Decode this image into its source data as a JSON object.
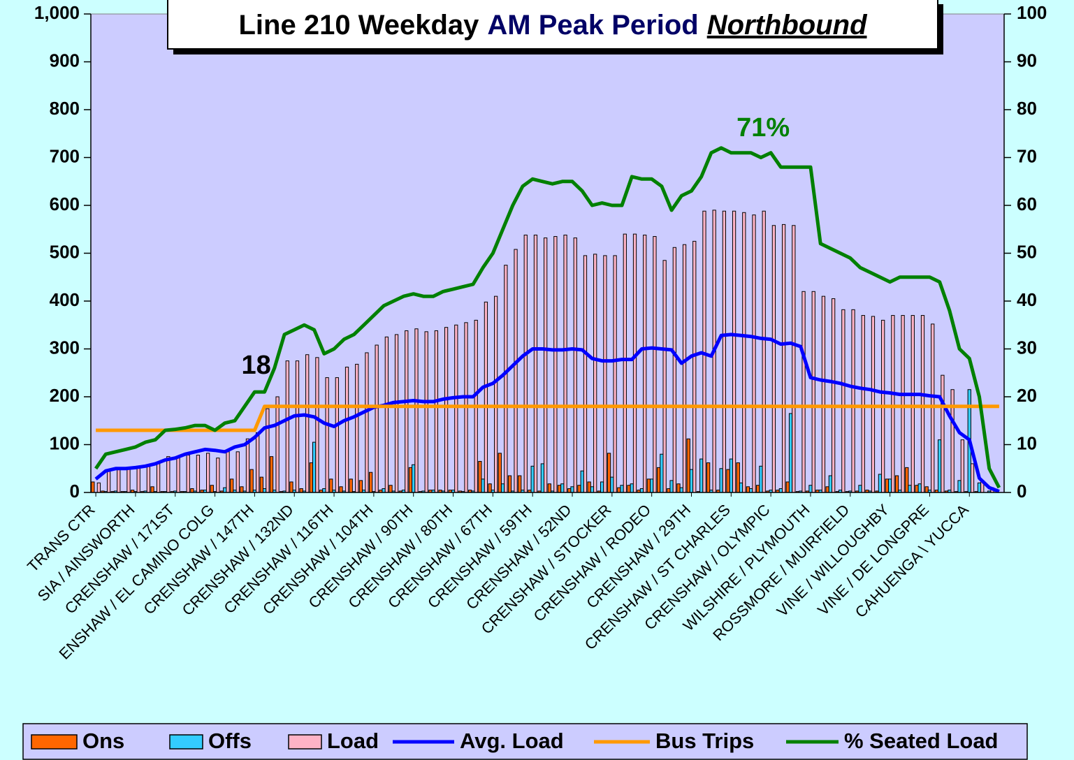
{
  "chart_data": {
    "type": "bar",
    "title": "Line 210 Weekday",
    "title_period": "AM Peak Period",
    "title_direction": "Northbound",
    "categories": [
      "TRANS CTR",
      null,
      null,
      null,
      "SIA / AINSWORTH",
      null,
      null,
      null,
      "CRENSHAW / 171ST",
      null,
      null,
      null,
      "ENSHAW / EL CAMINO COLG",
      null,
      null,
      null,
      "CRENSHAW / 147TH",
      null,
      null,
      null,
      "CRENSHAW / 132ND",
      null,
      null,
      null,
      "CRENSHAW / 116TH",
      null,
      null,
      null,
      "CRENSHAW / 104TH",
      null,
      null,
      null,
      "CRENSHAW / 90TH",
      null,
      null,
      null,
      "CRENSHAW / 80TH",
      null,
      null,
      null,
      "CRENSHAW / 67TH",
      null,
      null,
      null,
      "CRENSHAW / 59TH",
      null,
      null,
      null,
      "CRENSHAW / 52ND",
      null,
      null,
      null,
      "CRENSHAW / STOCKER",
      null,
      null,
      null,
      "CRENSHAW / RODEO",
      null,
      null,
      null,
      "CRENSHAW / 29TH",
      null,
      null,
      null,
      "CRENSHAW / ST CHARLES",
      null,
      null,
      null,
      "CRENSHAW / OLYMPIC",
      null,
      null,
      null,
      "WILSHIRE / PLYMOUTH",
      null,
      null,
      null,
      "ROSSMORE / MUIRFIELD",
      null,
      null,
      null,
      "VINE / WILLOUGHBY",
      null,
      null,
      null,
      "VINE / DE LONGPRE",
      null,
      null,
      null,
      "CAHUENGA \\ YUCCA",
      null,
      null,
      null
    ],
    "series": [
      {
        "name": "Ons",
        "type": "bar",
        "color": "#ff6600",
        "values": [
          22,
          3,
          2,
          2,
          5,
          2,
          12,
          2,
          2,
          2,
          8,
          5,
          15,
          3,
          28,
          12,
          48,
          32,
          75,
          2,
          22,
          8,
          62,
          5,
          28,
          12,
          28,
          25,
          42,
          5,
          15,
          3,
          52,
          2,
          5,
          5,
          5,
          3,
          5,
          65,
          18,
          82,
          35,
          35,
          5,
          3,
          18,
          15,
          8,
          15,
          22,
          3,
          82,
          10,
          15,
          5,
          28,
          52,
          8,
          18,
          112,
          2,
          62,
          5,
          48,
          62,
          12,
          15,
          3,
          5,
          22,
          2,
          3,
          5,
          12,
          2,
          2,
          3,
          5,
          3,
          28,
          35,
          52,
          15,
          12,
          5,
          3,
          2,
          2,
          2,
          0,
          0
        ]
      },
      {
        "name": "Offs",
        "type": "bar",
        "color": "#33ccff",
        "values": [
          0,
          2,
          3,
          2,
          2,
          3,
          2,
          2,
          3,
          2,
          3,
          5,
          2,
          10,
          5,
          3,
          5,
          8,
          5,
          3,
          5,
          3,
          105,
          8,
          5,
          3,
          2,
          5,
          2,
          8,
          3,
          5,
          58,
          3,
          5,
          3,
          5,
          2,
          3,
          28,
          5,
          18,
          3,
          5,
          55,
          60,
          3,
          18,
          12,
          45,
          12,
          22,
          32,
          15,
          18,
          8,
          28,
          80,
          25,
          10,
          48,
          70,
          5,
          50,
          70,
          20,
          8,
          55,
          5,
          8,
          165,
          3,
          15,
          5,
          35,
          5,
          3,
          15,
          3,
          38,
          28,
          5,
          15,
          18,
          5,
          110,
          5,
          25,
          215,
          20,
          3,
          0
        ]
      },
      {
        "name": "Load",
        "type": "bar",
        "color": "#ffb3c6",
        "values": [
          20,
          48,
          48,
          52,
          55,
          58,
          62,
          75,
          75,
          78,
          78,
          82,
          72,
          85,
          85,
          112,
          125,
          175,
          200,
          275,
          275,
          288,
          282,
          240,
          240,
          262,
          268,
          292,
          308,
          325,
          330,
          338,
          342,
          336,
          338,
          345,
          350,
          355,
          360,
          398,
          410,
          475,
          508,
          538,
          538,
          532,
          535,
          538,
          532,
          495,
          498,
          495,
          495,
          540,
          540,
          538,
          535,
          485,
          512,
          518,
          525,
          588,
          590,
          588,
          588,
          585,
          580,
          588,
          558,
          560,
          558,
          420,
          420,
          410,
          405,
          382,
          382,
          370,
          368,
          360,
          370,
          370,
          370,
          370,
          352,
          245,
          215,
          110,
          60,
          25,
          10,
          0
        ]
      },
      {
        "name": "Avg. Load",
        "type": "line",
        "color": "#0000ff",
        "values": [
          28,
          45,
          50,
          50,
          52,
          55,
          60,
          68,
          72,
          80,
          85,
          90,
          88,
          85,
          95,
          100,
          115,
          135,
          140,
          150,
          160,
          162,
          158,
          145,
          138,
          150,
          158,
          168,
          178,
          182,
          188,
          190,
          192,
          190,
          190,
          195,
          198,
          200,
          200,
          220,
          228,
          245,
          265,
          285,
          300,
          300,
          298,
          298,
          300,
          298,
          280,
          275,
          275,
          278,
          278,
          300,
          302,
          300,
          298,
          270,
          285,
          292,
          285,
          328,
          330,
          328,
          326,
          322,
          320,
          310,
          312,
          305,
          240,
          235,
          232,
          228,
          222,
          218,
          215,
          210,
          208,
          205,
          205,
          205,
          202,
          200,
          160,
          125,
          110,
          30,
          10,
          2
        ]
      },
      {
        "name": "Bus Trips",
        "type": "line",
        "axis": "y2",
        "color": "#ff9900",
        "values": [
          13,
          13,
          13,
          13,
          13,
          13,
          13,
          13,
          13,
          13,
          13,
          13,
          13,
          13,
          13,
          13,
          13,
          18,
          18,
          18,
          18,
          18,
          18,
          18,
          18,
          18,
          18,
          18,
          18,
          18,
          18,
          18,
          18,
          18,
          18,
          18,
          18,
          18,
          18,
          18,
          18,
          18,
          18,
          18,
          18,
          18,
          18,
          18,
          18,
          18,
          18,
          18,
          18,
          18,
          18,
          18,
          18,
          18,
          18,
          18,
          18,
          18,
          18,
          18,
          18,
          18,
          18,
          18,
          18,
          18,
          18,
          18,
          18,
          18,
          18,
          18,
          18,
          18,
          18,
          18,
          18,
          18,
          18,
          18,
          18,
          18,
          18,
          18,
          18,
          18,
          18,
          18
        ]
      },
      {
        "name": "% Seated Load",
        "type": "line",
        "axis": "y2",
        "color": "#008000",
        "values": [
          5,
          8,
          8.5,
          9,
          9.5,
          10.5,
          11,
          13,
          13.2,
          13.5,
          14,
          14,
          13,
          14.5,
          15,
          18,
          21,
          21,
          26,
          33,
          34,
          35,
          34,
          29,
          30,
          32,
          33,
          35,
          37,
          39,
          40,
          41,
          41.5,
          41,
          41,
          42,
          42.5,
          43,
          43.5,
          47,
          50,
          55,
          60,
          64,
          65.5,
          65,
          64.5,
          65,
          65,
          63,
          60,
          60.5,
          60,
          60,
          66,
          65.5,
          65.5,
          64,
          59,
          62,
          63,
          66,
          71,
          72,
          71,
          71,
          71,
          70,
          71,
          68,
          68,
          68,
          68,
          52,
          51,
          50,
          49,
          47,
          46,
          45,
          44,
          45,
          45,
          45,
          45,
          44,
          38,
          30,
          28,
          20,
          5,
          1
        ]
      }
    ],
    "annotations": [
      {
        "text": "18"
      },
      {
        "text": "71%"
      }
    ],
    "ylim": [
      0,
      1000
    ],
    "yticks": [
      0,
      100,
      200,
      300,
      400,
      500,
      600,
      700,
      800,
      900,
      {
        "value": 1000,
        "label": "1,000"
      }
    ],
    "y2lim": [
      0,
      100
    ],
    "y2ticks": [
      0,
      10,
      20,
      30,
      40,
      50,
      60,
      70,
      80,
      90,
      100
    ],
    "grid": false,
    "legend": "bottom"
  }
}
